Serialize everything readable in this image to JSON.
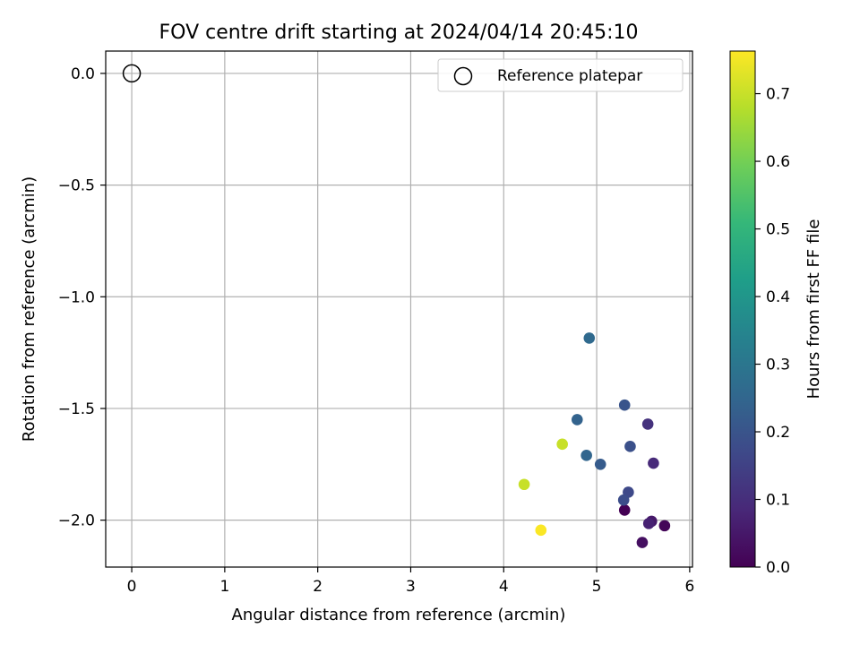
{
  "chart_data": {
    "type": "scatter",
    "title": "FOV centre drift starting at 2024/04/14 20:45:10",
    "xlabel": "Angular distance from reference (arcmin)",
    "ylabel": "Rotation from reference (arcmin)",
    "xlim": [
      -0.28,
      6.03
    ],
    "ylim": [
      -2.21,
      0.1
    ],
    "xticks": [
      0,
      1,
      2,
      3,
      4,
      5,
      6
    ],
    "yticks": [
      0.0,
      -0.5,
      -1.0,
      -1.5,
      -2.0
    ],
    "grid": true,
    "legend": {
      "placement": "top-right",
      "entries": [
        "Reference platepar"
      ]
    },
    "reference_point": {
      "x": 0,
      "y": 0,
      "label": "Reference platepar"
    },
    "colorbar": {
      "label": "Hours from first FF file",
      "colormap": "viridis",
      "range": [
        0,
        0.763
      ],
      "ticks": [
        0.0,
        0.1,
        0.2,
        0.3,
        0.4,
        0.5,
        0.6,
        0.7
      ]
    },
    "points": [
      {
        "x": 5.3,
        "y": -1.955,
        "hours": 0.0
      },
      {
        "x": 5.73,
        "y": -2.025,
        "hours": 0.01
      },
      {
        "x": 5.49,
        "y": -2.1,
        "hours": 0.03
      },
      {
        "x": 5.59,
        "y": -2.005,
        "hours": 0.05
      },
      {
        "x": 5.56,
        "y": -2.015,
        "hours": 0.07
      },
      {
        "x": 5.61,
        "y": -1.745,
        "hours": 0.09
      },
      {
        "x": 5.55,
        "y": -1.57,
        "hours": 0.11
      },
      {
        "x": 5.34,
        "y": -1.875,
        "hours": 0.17
      },
      {
        "x": 5.29,
        "y": -1.91,
        "hours": 0.18
      },
      {
        "x": 5.36,
        "y": -1.67,
        "hours": 0.19
      },
      {
        "x": 5.3,
        "y": -1.485,
        "hours": 0.2
      },
      {
        "x": 5.04,
        "y": -1.75,
        "hours": 0.22
      },
      {
        "x": 4.79,
        "y": -1.55,
        "hours": 0.24
      },
      {
        "x": 4.89,
        "y": -1.71,
        "hours": 0.25
      },
      {
        "x": 4.92,
        "y": -1.185,
        "hours": 0.26
      },
      {
        "x": 4.63,
        "y": -1.66,
        "hours": 0.7
      },
      {
        "x": 4.22,
        "y": -1.84,
        "hours": 0.7
      },
      {
        "x": 4.4,
        "y": -2.045,
        "hours": 0.76
      }
    ]
  }
}
